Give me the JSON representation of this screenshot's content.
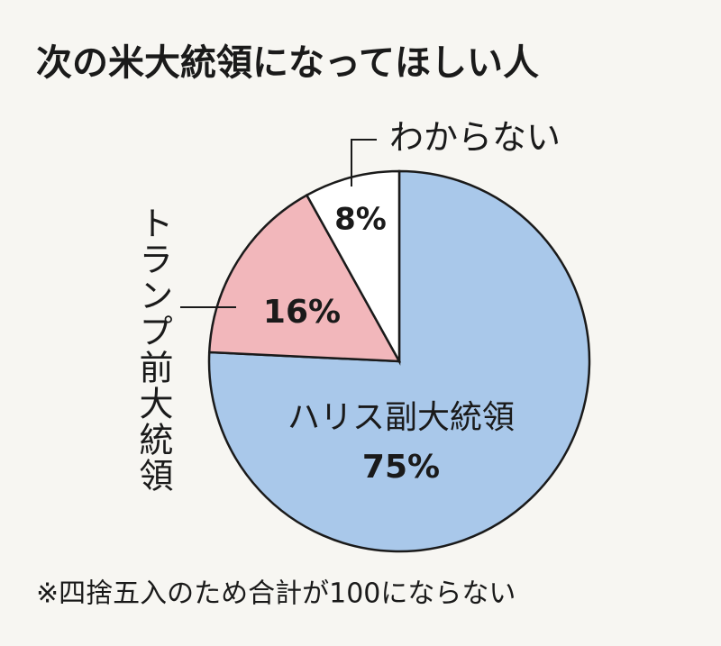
{
  "chart_data": {
    "type": "pie",
    "title": "次の米大統領になってほしい人",
    "categories": [
      "ハリス副大統領",
      "トランプ前大統領",
      "わからない"
    ],
    "values": [
      75,
      16,
      8
    ],
    "value_labels": [
      "75%",
      "16%",
      "8%"
    ],
    "colors": [
      "#a9c8ea",
      "#f2b7bb",
      "#ffffff"
    ],
    "footnote": "※四捨五入のため合計が100にならない"
  }
}
